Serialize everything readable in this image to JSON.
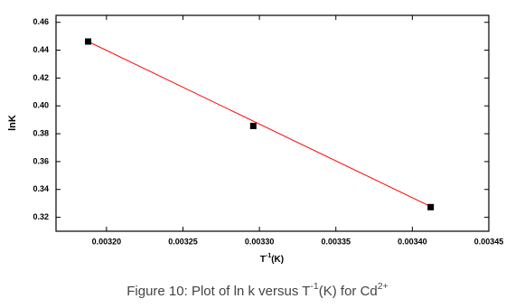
{
  "chart_data": {
    "type": "scatter",
    "caption": [
      "Figure 10: Plot of ln k versus T",
      "-1",
      "(K) for Cd",
      "2+"
    ],
    "xlabel": [
      "T",
      "-1",
      "(K)"
    ],
    "ylabel": "lnK",
    "series": [
      {
        "color": "#000000",
        "marker": "square",
        "x": [
          0.003188,
          0.003296,
          0.003412
        ],
        "values": [
          0.4462,
          0.3856,
          0.3273
        ]
      },
      {
        "color": "#ff0000",
        "marker": "line",
        "x": [
          0.003188,
          0.003412
        ],
        "values": [
          0.4462,
          0.3277
        ]
      }
    ],
    "xlim": [
      0.003167,
      0.00345
    ],
    "ylim": [
      0.31,
      0.465
    ],
    "xticks": [
      {
        "value": 0.0032,
        "label": "0.00320"
      },
      {
        "value": 0.00325,
        "label": "0.00325"
      },
      {
        "value": 0.0033,
        "label": "0.00330"
      },
      {
        "value": 0.00335,
        "label": "0.00335"
      },
      {
        "value": 0.0034,
        "label": "0.00340"
      },
      {
        "value": 0.00345,
        "label": "0.00345"
      }
    ],
    "yticks": [
      0.32,
      0.34,
      0.36,
      0.38,
      {
        "value": 0.4,
        "label": "0.40"
      },
      0.42,
      0.44,
      0.46
    ],
    "grid": false
  }
}
